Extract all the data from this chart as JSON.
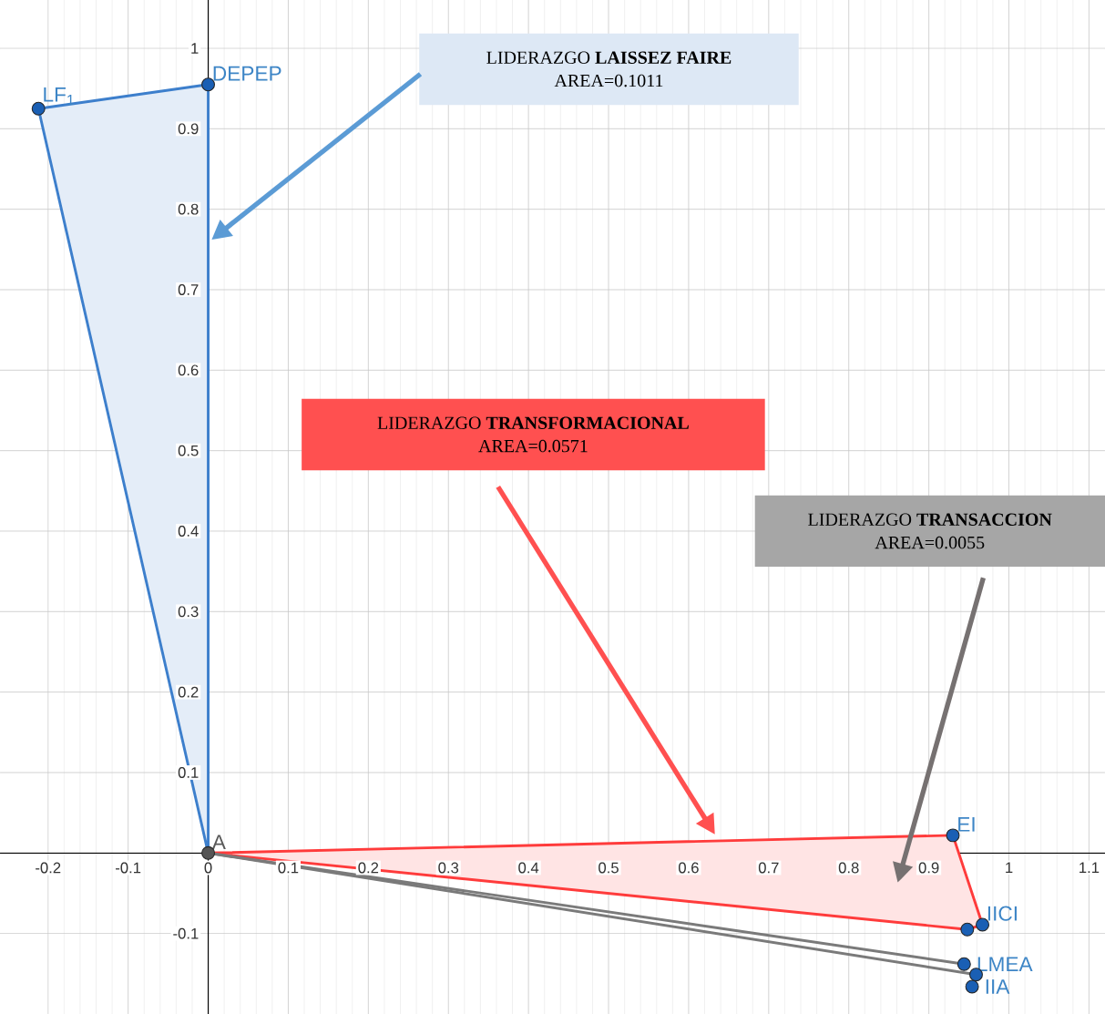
{
  "chart_data": {
    "type": "line",
    "xlim": [
      -0.26,
      1.12
    ],
    "ylim": [
      -0.2,
      1.06
    ],
    "xticks": [
      -0.2,
      -0.1,
      0,
      0.1,
      0.2,
      0.3,
      0.4,
      0.5,
      0.6,
      0.7,
      0.8,
      0.9,
      1,
      1.1
    ],
    "yticks": [
      -0.1,
      0.1,
      0.2,
      0.3,
      0.4,
      0.5,
      0.6,
      0.7,
      0.8,
      0.9,
      1
    ],
    "grid": true,
    "series": [
      {
        "type": "area",
        "color": "#3d7fcc",
        "x": [
          0,
          -0.212,
          0,
          0
        ],
        "values": [
          0,
          0.925,
          0.955,
          0
        ]
      },
      {
        "type": "area",
        "color": "#ff3b3b",
        "x": [
          0,
          0.93,
          0.967,
          0.948,
          0
        ],
        "values": [
          0,
          0.022,
          -0.089,
          -0.095,
          0
        ]
      },
      {
        "color": "#7a7a7a",
        "x": [
          0,
          0.944
        ],
        "values": [
          0,
          -0.138
        ]
      },
      {
        "color": "#7a7a7a",
        "x": [
          0,
          0.959
        ],
        "values": [
          0,
          -0.151
        ]
      },
      {
        "type": "scatter",
        "color": "#1a5fb4",
        "x": [
          -0.212,
          0,
          0.93,
          0.967,
          0.948,
          0.944,
          0.959,
          0.954
        ],
        "values": [
          0.925,
          0.955,
          0.022,
          -0.089,
          -0.095,
          -0.138,
          -0.151,
          -0.166
        ]
      },
      {
        "type": "scatter",
        "color": "#555555",
        "x": [
          0
        ],
        "values": [
          0
        ]
      }
    ],
    "annotations": [
      "LIDERAZGO **LAISSEZ FAIRE**",
      "AREA=0.1011",
      "LIDERAZGO **TRANSFORMACIONAL**",
      "AREA=0.0571",
      "LIDERAZGO **TRANSACCION**",
      "AREA=0.0055",
      {
        "text": "A",
        "x": 0,
        "y": 0
      },
      {
        "text": "LF$_{1}$",
        "x": -0.212,
        "y": 0.925
      },
      {
        "text": "DEPEP",
        "x": 0,
        "y": 0.955
      },
      {
        "text": "EI",
        "x": 0.93,
        "y": 0.022
      },
      {
        "text": "IICI",
        "x": 0.967,
        "y": -0.089
      },
      {
        "text": "LMEA",
        "x": 0.944,
        "y": -0.138
      },
      {
        "text": "IIA",
        "x": 0.954,
        "y": -0.166
      }
    ]
  }
}
